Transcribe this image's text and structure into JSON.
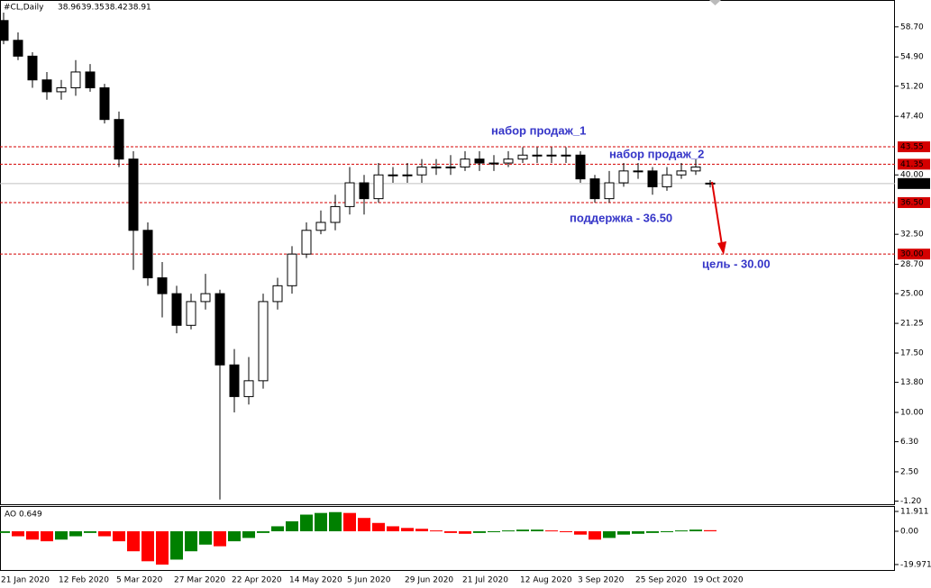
{
  "header": {
    "symbol": "#CL,Daily",
    "open": 38.96,
    "high": 39.35,
    "low": 38.42,
    "close": 38.91
  },
  "annotations": [
    "набор продаж_1",
    "набор продаж_2",
    "поддержка - 36.50",
    "цель - 30.00"
  ],
  "chart_data": [
    {
      "type": "candlestick",
      "categories": [
        "21 Jan 2020",
        null,
        null,
        null,
        "12 Feb 2020",
        null,
        null,
        null,
        "5 Mar 2020",
        null,
        null,
        null,
        "27 Mar 2020",
        null,
        null,
        null,
        "22 Apr 2020",
        null,
        null,
        null,
        "14 May 2020",
        null,
        null,
        null,
        "5 Jun 2020",
        null,
        null,
        null,
        "29 Jun 2020",
        null,
        null,
        null,
        "21 Jul 2020",
        null,
        null,
        null,
        "12 Aug 2020",
        null,
        null,
        null,
        "3 Sep 2020",
        null,
        null,
        null,
        "25 Sep 2020",
        null,
        null,
        null,
        "19 Oct 2020",
        null
      ],
      "open": [
        59.5,
        57,
        55,
        52,
        50.5,
        51,
        53,
        51,
        47,
        42,
        33,
        27,
        25,
        21,
        24,
        25,
        16,
        12,
        14,
        24,
        26,
        30,
        33,
        34,
        36,
        39,
        37,
        40,
        40,
        40,
        41,
        41,
        41,
        42,
        41.5,
        41.5,
        42,
        42.5,
        42.5,
        42.5,
        42.5,
        39.5,
        37,
        39,
        40.5,
        40.5,
        38.5,
        40,
        40.5,
        38.96
      ],
      "high": [
        60.5,
        58,
        55.5,
        53,
        52,
        54.5,
        54,
        51.5,
        48,
        43,
        34,
        29,
        26,
        25,
        27.5,
        25.5,
        18,
        17,
        25,
        27,
        31,
        34,
        35.5,
        37.5,
        41,
        40,
        41.5,
        41,
        41.5,
        42,
        42,
        42.5,
        43,
        43,
        42.5,
        43,
        43.5,
        43.5,
        43.5,
        43.5,
        43,
        40,
        40.5,
        41.5,
        41.5,
        41,
        41,
        41.5,
        42,
        39.35
      ],
      "low": [
        56.5,
        54.5,
        51,
        49.5,
        49.5,
        50,
        50.5,
        46.5,
        41,
        28,
        26,
        22,
        20,
        20.5,
        23,
        -1.0,
        10,
        11,
        13,
        23,
        25,
        29.5,
        32.5,
        33,
        35,
        35,
        36.5,
        39,
        39,
        39,
        40,
        40,
        40.5,
        40.5,
        40.5,
        41,
        41.5,
        41.5,
        41.5,
        41.5,
        39,
        36.5,
        36.5,
        38.5,
        39.5,
        37.5,
        38,
        39.5,
        40,
        38.42
      ],
      "close": [
        57,
        55,
        52,
        50.5,
        51,
        53,
        51,
        47,
        42,
        33,
        27,
        25,
        21,
        24,
        25,
        16,
        12,
        14,
        24,
        26,
        30,
        33,
        34,
        36,
        39,
        37,
        40,
        40,
        40,
        41,
        41,
        41,
        42,
        41.5,
        41.5,
        42,
        42.5,
        42.5,
        42.5,
        42.5,
        39.5,
        37,
        39,
        40.5,
        40.5,
        38.5,
        40,
        40.5,
        41,
        38.91
      ],
      "ylim": [
        -1.6,
        60.5
      ],
      "yticks": [
        {
          "value": 58.7,
          "label": "58.70"
        },
        {
          "value": 54.9,
          "label": "54.90"
        },
        {
          "value": 51.2,
          "label": "51.20"
        },
        {
          "value": 47.4,
          "label": "47.40"
        },
        {
          "value": 40,
          "label": "40.00"
        },
        {
          "value": 32.5,
          "label": "32.50"
        },
        {
          "value": 28.7,
          "label": "28.70"
        },
        {
          "value": 25,
          "label": "25.00"
        },
        {
          "value": 21.25,
          "label": "21.25"
        },
        {
          "value": 17.5,
          "label": "17.50"
        },
        {
          "value": 13.8,
          "label": "13.80"
        },
        {
          "value": 10,
          "label": "10.00"
        },
        {
          "value": 6.3,
          "label": "6.30"
        },
        {
          "value": 2.5,
          "label": "2.50"
        },
        {
          "value": -1.2,
          "label": "-1.20"
        }
      ],
      "levels": [
        {
          "value": 43.55,
          "label": "43.55",
          "color": "#d40000"
        },
        {
          "value": 41.35,
          "label": "41.35",
          "color": "#d40000"
        },
        {
          "value": 36.5,
          "label": "36.50",
          "color": "#d40000"
        },
        {
          "value": 30,
          "label": "30.00",
          "color": "#d40000"
        },
        {
          "value": 38.91,
          "label": "38.91",
          "color": "#000000"
        }
      ],
      "up_color": "#ffffff",
      "down_color": "#000000"
    },
    {
      "type": "histogram",
      "title": "AO 0.649",
      "values": [
        -1,
        -3,
        -5,
        -6,
        -5,
        -3,
        -1,
        -3,
        -6,
        -12,
        -18,
        -20,
        -17,
        -12,
        -8,
        -9,
        -6,
        -4,
        -1,
        3,
        6,
        10,
        11,
        11.5,
        11,
        8,
        5,
        3,
        2,
        1.5,
        0.5,
        -1,
        -1.5,
        -1,
        0,
        0.5,
        1,
        1,
        0.5,
        0,
        -2,
        -5,
        -4,
        -2,
        -1.5,
        -1,
        -0.5,
        0.5,
        1,
        0.649
      ],
      "ylim": [
        -22.7,
        14.6
      ],
      "yticks": [
        {
          "value": 11.911,
          "label": "11.911"
        },
        {
          "value": 0,
          "label": "0.00"
        },
        {
          "value": -19.971,
          "label": "-19.971"
        }
      ],
      "up_color": "#008000",
      "down_color": "#ff0000"
    }
  ]
}
